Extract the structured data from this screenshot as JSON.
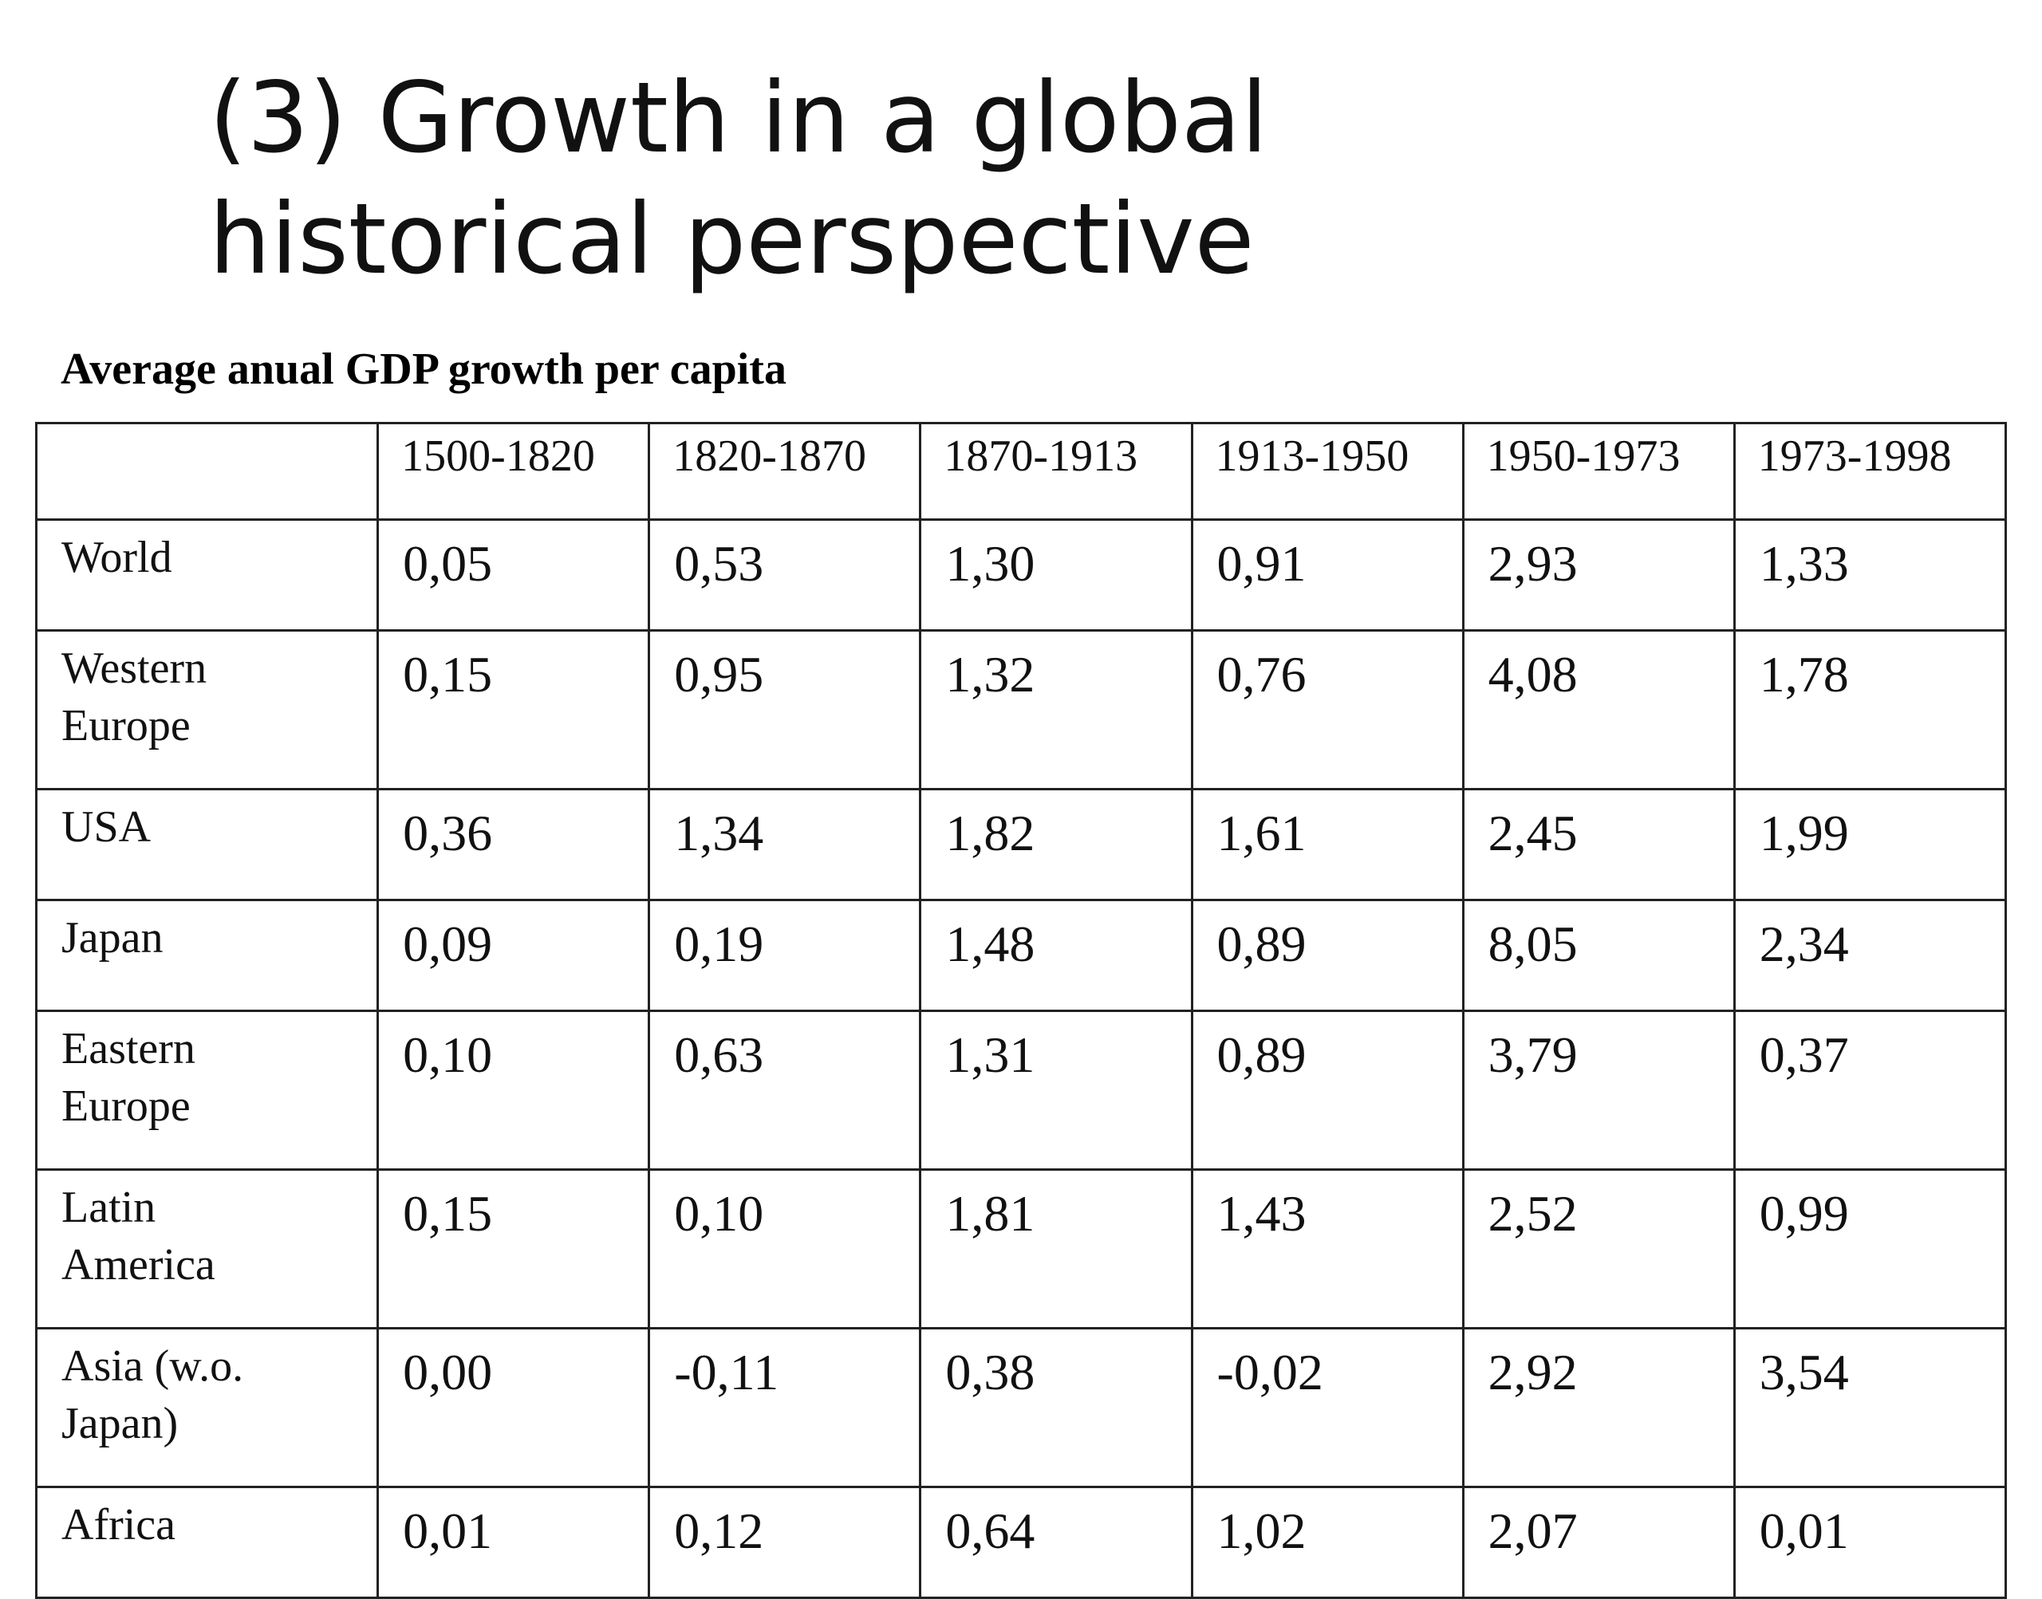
{
  "slide": {
    "title_line1": "(3) Growth in a global",
    "title_line2": "historical perspective"
  },
  "table": {
    "caption": "Average anual GDP growth per capita",
    "header": {
      "corner": "",
      "periods": [
        "1500-1820",
        "1820-1870",
        "1870-1913",
        "1913-1950",
        "1950-1973",
        "1973-1998"
      ]
    },
    "rows": [
      {
        "region_line1": "World",
        "region_line2": "",
        "values": [
          "0,05",
          "0,53",
          "1,30",
          "0,91",
          "2,93",
          "1,33"
        ]
      },
      {
        "region_line1": "Western",
        "region_line2": "Europe",
        "values": [
          "0,15",
          "0,95",
          "1,32",
          "0,76",
          "4,08",
          "1,78"
        ]
      },
      {
        "region_line1": "USA",
        "region_line2": "",
        "values": [
          "0,36",
          "1,34",
          "1,82",
          "1,61",
          "2,45",
          "1,99"
        ]
      },
      {
        "region_line1": "Japan",
        "region_line2": "",
        "values": [
          "0,09",
          "0,19",
          "1,48",
          "0,89",
          "8,05",
          "2,34"
        ]
      },
      {
        "region_line1": "Eastern",
        "region_line2": "Europe",
        "values": [
          "0,10",
          "0,63",
          "1,31",
          "0,89",
          "3,79",
          "0,37"
        ]
      },
      {
        "region_line1": "Latin",
        "region_line2": "America",
        "values": [
          "0,15",
          "0,10",
          "1,81",
          "1,43",
          "2,52",
          "0,99"
        ]
      },
      {
        "region_line1": "Asia (w.o.",
        "region_line2": "Japan)",
        "values": [
          "0,00",
          "-0,11",
          "0,38",
          "-0,02",
          "2,92",
          "3,54"
        ]
      },
      {
        "region_line1": "Africa",
        "region_line2": "",
        "values": [
          "0,01",
          "0,12",
          "0,64",
          "1,02",
          "2,07",
          "0,01"
        ]
      }
    ]
  }
}
